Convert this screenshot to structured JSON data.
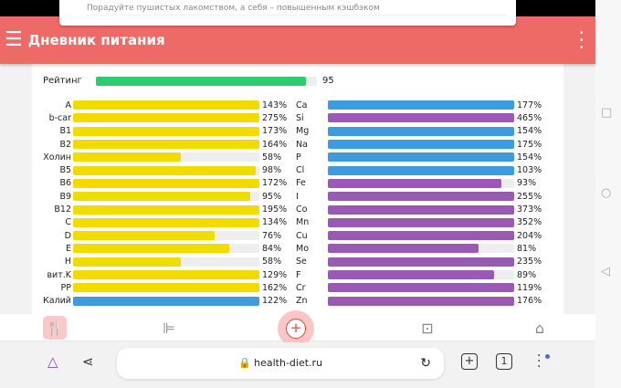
{
  "notification": {
    "text": "Порадуйте пушистых лакомством, а себя – повышенным кэшбэком"
  },
  "header": {
    "title": "Дневник питания",
    "menu_icon": "hamburger-icon",
    "more_icon": "more-vert-icon"
  },
  "rating": {
    "label": "Рейтинг",
    "value": "95",
    "percent": 95,
    "color": "#2ecc71"
  },
  "colors": {
    "vitamin": "#f2dc00",
    "mineral_blue": "#3d9be0",
    "mineral_purple": "#9b59b6",
    "track": "#eeeeee"
  },
  "left_nutrients": [
    {
      "name": "A",
      "pct": "143%",
      "value": 143,
      "color": "#f2dc00"
    },
    {
      "name": "b-car",
      "pct": "275%",
      "value": 275,
      "color": "#f2dc00"
    },
    {
      "name": "B1",
      "pct": "173%",
      "value": 173,
      "color": "#f2dc00"
    },
    {
      "name": "B2",
      "pct": "164%",
      "value": 164,
      "color": "#f2dc00"
    },
    {
      "name": "Холин",
      "pct": "58%",
      "value": 58,
      "color": "#f2dc00"
    },
    {
      "name": "B5",
      "pct": "98%",
      "value": 98,
      "color": "#f2dc00"
    },
    {
      "name": "B6",
      "pct": "172%",
      "value": 172,
      "color": "#f2dc00"
    },
    {
      "name": "B9",
      "pct": "95%",
      "value": 95,
      "color": "#f2dc00"
    },
    {
      "name": "B12",
      "pct": "195%",
      "value": 195,
      "color": "#f2dc00"
    },
    {
      "name": "C",
      "pct": "134%",
      "value": 134,
      "color": "#f2dc00"
    },
    {
      "name": "D",
      "pct": "76%",
      "value": 76,
      "color": "#f2dc00"
    },
    {
      "name": "E",
      "pct": "84%",
      "value": 84,
      "color": "#f2dc00"
    },
    {
      "name": "H",
      "pct": "58%",
      "value": 58,
      "color": "#f2dc00"
    },
    {
      "name": "вит.K",
      "pct": "129%",
      "value": 129,
      "color": "#f2dc00"
    },
    {
      "name": "PP",
      "pct": "162%",
      "value": 162,
      "color": "#f2dc00"
    },
    {
      "name": "Калий",
      "pct": "122%",
      "value": 122,
      "color": "#3d9be0"
    }
  ],
  "right_nutrients": [
    {
      "name": "Ca",
      "pct": "177%",
      "value": 177,
      "color": "#3d9be0"
    },
    {
      "name": "Si",
      "pct": "465%",
      "value": 465,
      "color": "#9b59b6"
    },
    {
      "name": "Mg",
      "pct": "154%",
      "value": 154,
      "color": "#3d9be0"
    },
    {
      "name": "Na",
      "pct": "175%",
      "value": 175,
      "color": "#3d9be0"
    },
    {
      "name": "P",
      "pct": "154%",
      "value": 154,
      "color": "#3d9be0"
    },
    {
      "name": "Cl",
      "pct": "103%",
      "value": 103,
      "color": "#3d9be0"
    },
    {
      "name": "Fe",
      "pct": "93%",
      "value": 93,
      "color": "#9b59b6"
    },
    {
      "name": "I",
      "pct": "255%",
      "value": 255,
      "color": "#9b59b6"
    },
    {
      "name": "Co",
      "pct": "373%",
      "value": 373,
      "color": "#9b59b6"
    },
    {
      "name": "Mn",
      "pct": "352%",
      "value": 352,
      "color": "#9b59b6"
    },
    {
      "name": "Cu",
      "pct": "204%",
      "value": 204,
      "color": "#9b59b6"
    },
    {
      "name": "Mo",
      "pct": "81%",
      "value": 81,
      "color": "#9b59b6"
    },
    {
      "name": "Se",
      "pct": "235%",
      "value": 235,
      "color": "#9b59b6"
    },
    {
      "name": "F",
      "pct": "89%",
      "value": 89,
      "color": "#9b59b6"
    },
    {
      "name": "Cr",
      "pct": "119%",
      "value": 119,
      "color": "#9b59b6"
    },
    {
      "name": "Zn",
      "pct": "176%",
      "value": 176,
      "color": "#9b59b6"
    }
  ],
  "tabbar": {
    "tabs": [
      "diary-icon",
      "workout-icon",
      "add-icon",
      "scale-icon",
      "home-icon"
    ],
    "active": "diary-icon"
  },
  "browser": {
    "url": "health-diet.ru",
    "tab_count": "1"
  }
}
